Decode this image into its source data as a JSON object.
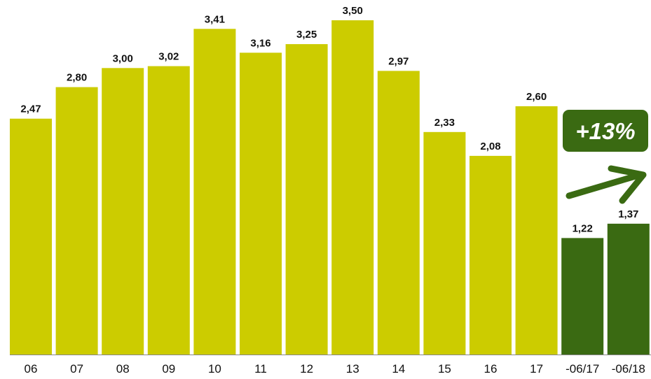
{
  "chart_data": {
    "type": "bar",
    "categories": [
      "06",
      "07",
      "08",
      "09",
      "10",
      "11",
      "12",
      "13",
      "14",
      "15",
      "16",
      "17",
      "-06/17",
      "-06/18"
    ],
    "values": [
      2.47,
      2.8,
      3.0,
      3.02,
      3.41,
      3.16,
      3.25,
      3.5,
      2.97,
      2.33,
      2.08,
      2.6,
      1.22,
      1.37
    ],
    "value_labels": [
      "2,47",
      "2,80",
      "3,00",
      "3,02",
      "3,41",
      "3,16",
      "3,25",
      "3,50",
      "2,97",
      "2,33",
      "2,08",
      "2,60",
      "1,22",
      "1,37"
    ],
    "bar_colors": [
      "#cccc00",
      "#cccc00",
      "#cccc00",
      "#cccc00",
      "#cccc00",
      "#cccc00",
      "#cccc00",
      "#cccc00",
      "#cccc00",
      "#cccc00",
      "#cccc00",
      "#cccc00",
      "#3a6a12",
      "#3a6a12"
    ],
    "ylim": [
      0,
      3.5
    ],
    "grid": false,
    "legend": "none",
    "annotation": {
      "text": "+13%",
      "shape": "arrow-up-right-icon",
      "color": "#3a6a12"
    }
  },
  "colors": {
    "primary_bar": "#cccc00",
    "highlight_bar": "#3a6a12",
    "axis": "#888888"
  }
}
